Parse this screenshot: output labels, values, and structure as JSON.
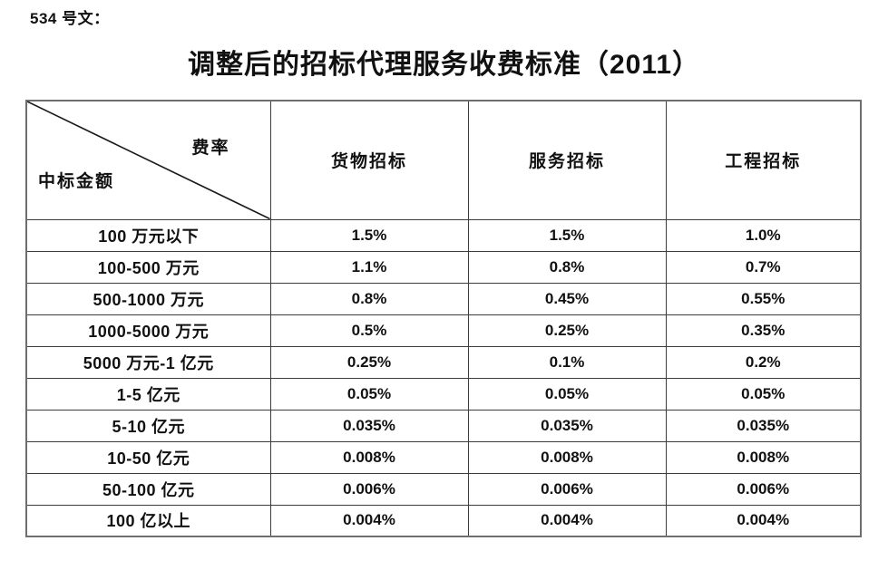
{
  "doc": {
    "doc_number": "534 号文：",
    "title": "调整后的招标代理服务收费标准（2011）"
  },
  "table": {
    "corner": {
      "top_right": "费率",
      "bottom_left": "中标金额"
    },
    "columns": [
      "货物招标",
      "服务招标",
      "工程招标"
    ],
    "rows": [
      {
        "label": "100 万元以下",
        "values": [
          "1.5%",
          "1.5%",
          "1.0%"
        ]
      },
      {
        "label": "100-500 万元",
        "values": [
          "1.1%",
          "0.8%",
          "0.7%"
        ]
      },
      {
        "label": "500-1000 万元",
        "values": [
          "0.8%",
          "0.45%",
          "0.55%"
        ]
      },
      {
        "label": "1000-5000 万元",
        "values": [
          "0.5%",
          "0.25%",
          "0.35%"
        ]
      },
      {
        "label": "5000 万元-1 亿元",
        "values": [
          "0.25%",
          "0.1%",
          "0.2%"
        ]
      },
      {
        "label": "1-5 亿元",
        "values": [
          "0.05%",
          "0.05%",
          "0.05%"
        ]
      },
      {
        "label": "5-10 亿元",
        "values": [
          "0.035%",
          "0.035%",
          "0.035%"
        ]
      },
      {
        "label": "10-50 亿元",
        "values": [
          "0.008%",
          "0.008%",
          "0.008%"
        ]
      },
      {
        "label": "50-100 亿元",
        "values": [
          "0.006%",
          "0.006%",
          "0.006%"
        ]
      },
      {
        "label": "100 亿以上",
        "values": [
          "0.004%",
          "0.004%",
          "0.004%"
        ]
      }
    ]
  },
  "colors": {
    "text": "#111111",
    "border_inner": "#3c3c3c",
    "border_outer": "#6e6e6e",
    "background": "#ffffff"
  }
}
